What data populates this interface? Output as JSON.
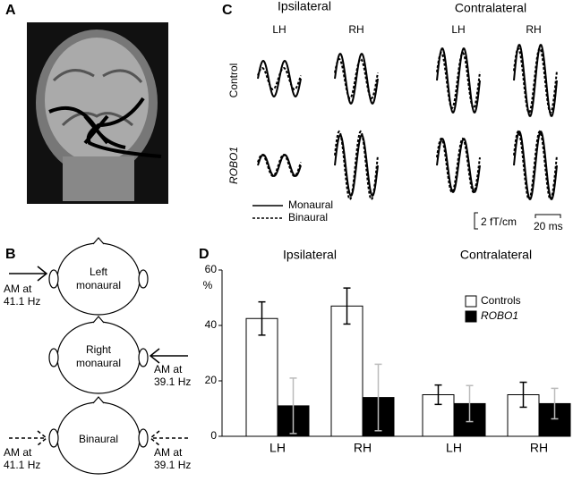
{
  "panels": {
    "a": {
      "label": "A"
    },
    "b": {
      "label": "B",
      "heads": [
        [
          "Left",
          "monaural"
        ],
        [
          "Right",
          "monaural"
        ],
        [
          "Binaural"
        ]
      ],
      "stimuli": [
        [
          "AM at",
          "41.1 Hz"
        ],
        [
          "AM at",
          "39.1 Hz"
        ],
        [
          "AM at",
          "41.1 Hz"
        ],
        [
          "AM at",
          "39.1 Hz"
        ]
      ]
    },
    "c": {
      "label": "C",
      "columns": [
        "Ipsilateral",
        "Contralateral"
      ],
      "hemispheres": [
        "LH",
        "RH",
        "LH",
        "RH"
      ],
      "rows": [
        "Control",
        "ROBO1"
      ],
      "legend": [
        "Monaural",
        "Binaural"
      ],
      "scale": [
        "2 fT/cm",
        "20 ms"
      ]
    },
    "d": {
      "label": "D"
    }
  },
  "chart_data": {
    "type": "bar",
    "group_labels": [
      "Ipsilateral",
      "Contralateral"
    ],
    "categories": [
      "LH",
      "RH",
      "LH",
      "RH"
    ],
    "y_label": "%",
    "series": [
      {
        "name": "Controls",
        "color": "#ffffff",
        "values": [
          42.5,
          47,
          15,
          15
        ],
        "errors": [
          6,
          6.5,
          3.5,
          4.5
        ]
      },
      {
        "name": "ROBO1",
        "color": "#000000",
        "values": [
          11,
          14,
          11.8,
          11.8
        ],
        "errors": [
          10,
          12,
          6.5,
          5.5
        ]
      }
    ],
    "ylim": [
      0,
      60
    ],
    "yticks": [
      0,
      20,
      40,
      60
    ],
    "legend": "upper right"
  }
}
